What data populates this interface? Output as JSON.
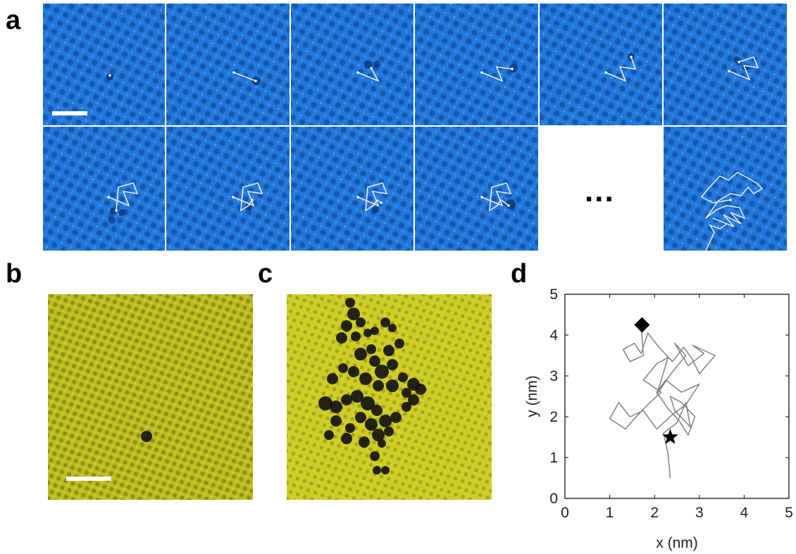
{
  "figure": {
    "panel_labels": {
      "a": "a",
      "b": "b",
      "c": "c",
      "d": "d"
    },
    "ellipsis": "...",
    "colors": {
      "blue_tile": "#1f6fd4",
      "yellow_tile": "#cbcb24",
      "trajectory_white": "#eeeeee",
      "trajectory_gray": "#808080"
    }
  },
  "chart_data": {
    "type": "line",
    "xlabel": "x (nm)",
    "ylabel": "y (nm)",
    "xlim": [
      0,
      5
    ],
    "ylim": [
      0,
      5
    ],
    "xticks": [
      "0",
      "1",
      "2",
      "3",
      "4",
      "5"
    ],
    "yticks": [
      "0",
      "1",
      "2",
      "3",
      "4",
      "5"
    ],
    "grid": false,
    "series": [
      {
        "x": [
          2.35,
          2.3,
          2.2,
          2.5,
          2.7,
          2.8,
          2.45,
          2.35,
          2.6,
          2.9,
          2.75,
          2.55,
          2.3,
          2.05,
          2.25,
          2.6,
          3.0,
          2.7,
          2.4,
          2.05,
          1.75,
          1.45,
          1.2,
          1.0,
          1.35,
          1.55,
          1.85,
          2.15,
          1.75,
          2.05,
          2.3,
          2.15,
          2.05,
          2.4,
          2.7,
          2.45,
          2.75,
          3.1,
          2.85,
          3.35,
          3.0,
          2.85,
          2.65,
          2.4,
          2.1,
          1.85,
          1.7,
          1.55,
          1.3,
          1.45,
          1.75,
          1.7
        ],
        "y": [
          0.5,
          1.1,
          1.6,
          1.85,
          2.35,
          1.75,
          2.15,
          2.5,
          2.35,
          2.0,
          1.55,
          1.9,
          2.2,
          2.6,
          2.9,
          2.6,
          2.8,
          2.3,
          2.05,
          1.7,
          2.15,
          2.0,
          2.35,
          1.95,
          1.7,
          1.95,
          2.3,
          2.6,
          2.9,
          3.3,
          3.45,
          2.9,
          2.55,
          3.1,
          3.5,
          3.8,
          3.25,
          3.55,
          3.75,
          3.5,
          3.05,
          3.4,
          3.7,
          3.35,
          3.7,
          4.05,
          3.55,
          3.8,
          3.65,
          3.35,
          3.5,
          4.25
        ]
      }
    ],
    "markers": [
      {
        "shape": "diamond",
        "x": 1.72,
        "y": 4.25
      },
      {
        "shape": "star",
        "x": 2.35,
        "y": 1.5
      }
    ]
  }
}
